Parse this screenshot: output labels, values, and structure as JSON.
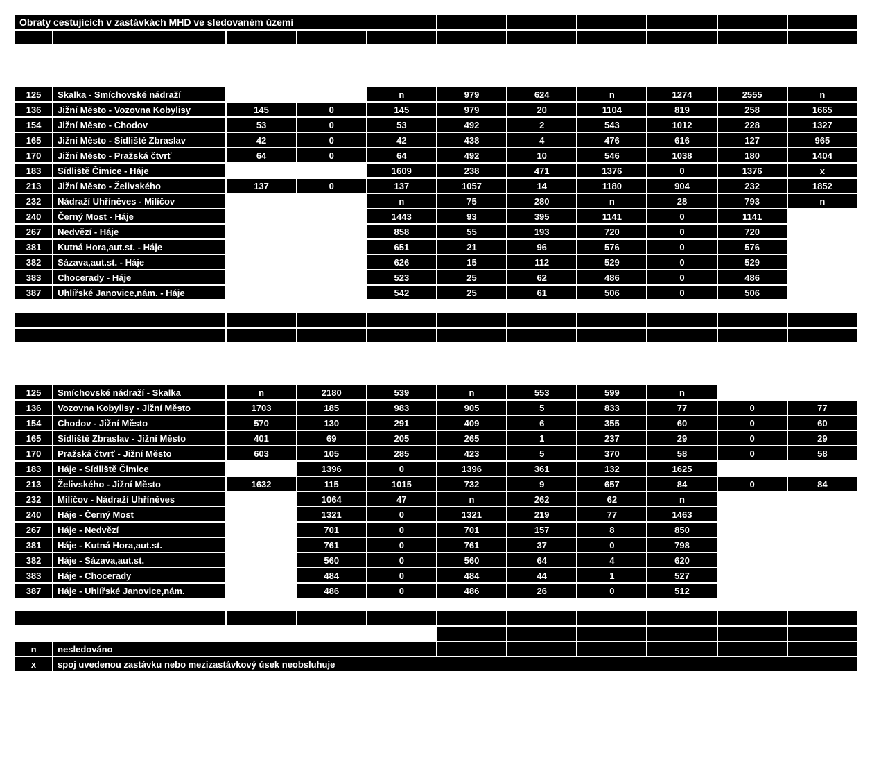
{
  "title": "Obraty cestujících v zastávkách MHD ve sledovaném území",
  "legend": {
    "n_label": "n",
    "n_text": "nesledováno",
    "x_label": "x",
    "x_text": "spoj uvedenou zastávku nebo mezizastávkový úsek neobsluhuje"
  },
  "section1": {
    "rows": [
      {
        "line": "125",
        "route": "Skalka - Smíchovské nádraží",
        "c": [
          "",
          "",
          "n",
          "979",
          "624",
          "n",
          "1274",
          "2555",
          "n"
        ]
      },
      {
        "line": "136",
        "route": "Jižní Město - Vozovna Kobylisy",
        "c": [
          "145",
          "0",
          "145",
          "979",
          "20",
          "1104",
          "819",
          "258",
          "1665"
        ]
      },
      {
        "line": "154",
        "route": "Jižní Město - Chodov",
        "c": [
          "53",
          "0",
          "53",
          "492",
          "2",
          "543",
          "1012",
          "228",
          "1327"
        ]
      },
      {
        "line": "165",
        "route": "Jižní Město - Sídliště Zbraslav",
        "c": [
          "42",
          "0",
          "42",
          "438",
          "4",
          "476",
          "616",
          "127",
          "965"
        ]
      },
      {
        "line": "170",
        "route": "Jižní Město - Pražská čtvrť",
        "c": [
          "64",
          "0",
          "64",
          "492",
          "10",
          "546",
          "1038",
          "180",
          "1404"
        ]
      },
      {
        "line": "183",
        "route": "Sídliště Čimice - Háje",
        "c": [
          "",
          "",
          "1609",
          "238",
          "471",
          "1376",
          "0",
          "1376",
          "x"
        ]
      },
      {
        "line": "213",
        "route": "Jižní Město - Želivského",
        "c": [
          "137",
          "0",
          "137",
          "1057",
          "14",
          "1180",
          "904",
          "232",
          "1852"
        ]
      },
      {
        "line": "232",
        "route": "Nádraží Uhříněves - Milíčov",
        "c": [
          "",
          "",
          "n",
          "75",
          "280",
          "n",
          "28",
          "793",
          "n"
        ]
      },
      {
        "line": "240",
        "route": "Černý Most - Háje",
        "c": [
          "",
          "",
          "1443",
          "93",
          "395",
          "1141",
          "0",
          "1141",
          ""
        ]
      },
      {
        "line": "267",
        "route": "Nedvězí - Háje",
        "c": [
          "",
          "",
          "858",
          "55",
          "193",
          "720",
          "0",
          "720",
          ""
        ]
      },
      {
        "line": "381",
        "route": "Kutná Hora,aut.st. - Háje",
        "c": [
          "",
          "",
          "651",
          "21",
          "96",
          "576",
          "0",
          "576",
          ""
        ]
      },
      {
        "line": "382",
        "route": "Sázava,aut.st. - Háje",
        "c": [
          "",
          "",
          "626",
          "15",
          "112",
          "529",
          "0",
          "529",
          ""
        ]
      },
      {
        "line": "383",
        "route": "Chocerady - Háje",
        "c": [
          "",
          "",
          "523",
          "25",
          "62",
          "486",
          "0",
          "486",
          ""
        ]
      },
      {
        "line": "387",
        "route": "Uhlířské Janovice,nám. - Háje",
        "c": [
          "",
          "",
          "542",
          "25",
          "61",
          "506",
          "0",
          "506",
          ""
        ]
      }
    ]
  },
  "section2": {
    "rows": [
      {
        "line": "125",
        "route": "Smíchovské nádraží - Skalka",
        "c": [
          "n",
          "2180",
          "539",
          "n",
          "553",
          "599",
          "n",
          "",
          ""
        ]
      },
      {
        "line": "136",
        "route": "Vozovna Kobylisy - Jižní Město",
        "c": [
          "1703",
          "185",
          "983",
          "905",
          "5",
          "833",
          "77",
          "0",
          "77"
        ]
      },
      {
        "line": "154",
        "route": "Chodov - Jižní Město",
        "c": [
          "570",
          "130",
          "291",
          "409",
          "6",
          "355",
          "60",
          "0",
          "60"
        ]
      },
      {
        "line": "165",
        "route": "Sídliště Zbraslav - Jižní Město",
        "c": [
          "401",
          "69",
          "205",
          "265",
          "1",
          "237",
          "29",
          "0",
          "29"
        ]
      },
      {
        "line": "170",
        "route": "Pražská čtvrť - Jižní Město",
        "c": [
          "603",
          "105",
          "285",
          "423",
          "5",
          "370",
          "58",
          "0",
          "58"
        ]
      },
      {
        "line": "183",
        "route": "Háje - Sídliště Čimice",
        "c": [
          "",
          "1396",
          "0",
          "1396",
          "361",
          "132",
          "1625",
          "",
          ""
        ]
      },
      {
        "line": "213",
        "route": "Želivského - Jižní Město",
        "c": [
          "1632",
          "115",
          "1015",
          "732",
          "9",
          "657",
          "84",
          "0",
          "84"
        ]
      },
      {
        "line": "232",
        "route": "Milíčov - Nádraží Uhříněves",
        "c": [
          "",
          "1064",
          "47",
          "n",
          "262",
          "62",
          "n",
          "",
          ""
        ]
      },
      {
        "line": "240",
        "route": "Háje - Černý Most",
        "c": [
          "",
          "1321",
          "0",
          "1321",
          "219",
          "77",
          "1463",
          "",
          ""
        ]
      },
      {
        "line": "267",
        "route": "Háje - Nedvězí",
        "c": [
          "",
          "701",
          "0",
          "701",
          "157",
          "8",
          "850",
          "",
          ""
        ]
      },
      {
        "line": "381",
        "route": "Háje - Kutná Hora,aut.st.",
        "c": [
          "",
          "761",
          "0",
          "761",
          "37",
          "0",
          "798",
          "",
          ""
        ]
      },
      {
        "line": "382",
        "route": "Háje - Sázava,aut.st.",
        "c": [
          "",
          "560",
          "0",
          "560",
          "64",
          "4",
          "620",
          "",
          ""
        ]
      },
      {
        "line": "383",
        "route": "Háje - Chocerady",
        "c": [
          "",
          "484",
          "0",
          "484",
          "44",
          "1",
          "527",
          "",
          ""
        ]
      },
      {
        "line": "387",
        "route": "Háje - Uhlířské Janovice,nám.",
        "c": [
          "",
          "486",
          "0",
          "486",
          "26",
          "0",
          "512",
          "",
          ""
        ]
      }
    ]
  }
}
